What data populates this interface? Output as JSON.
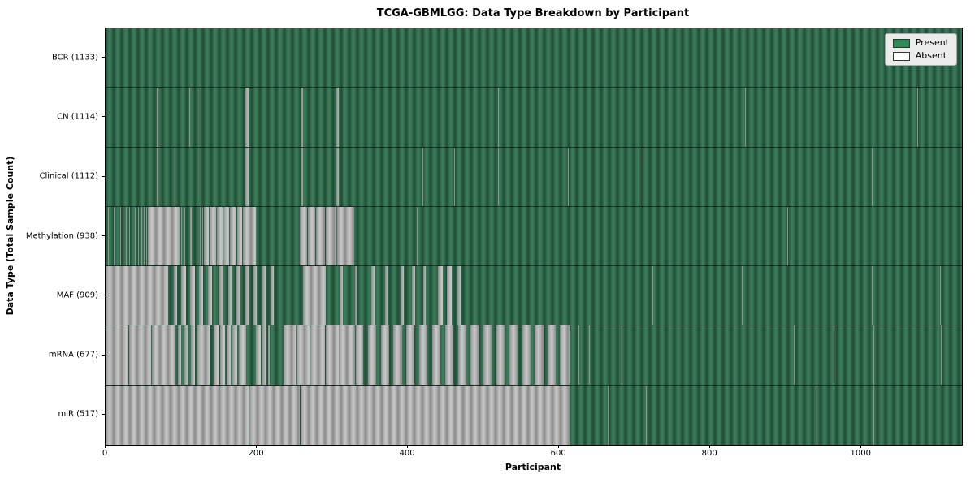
{
  "chart_data": {
    "type": "heatmap",
    "title": "TCGA-GBMLGG: Data Type Breakdown by Participant",
    "xlabel": "Participant",
    "ylabel": "Data Type (Total Sample Count)",
    "x_ticks": [
      0,
      200,
      400,
      600,
      800,
      1000
    ],
    "x_max": 1133,
    "grid": false,
    "legend_position": "upper right",
    "colors": {
      "present_green": "#2e8b57",
      "present_rendered": "#2d6548",
      "absent_white": "#ffffff",
      "absent_rendered": "#a9a9a9",
      "plot_border": "#000000",
      "legend_background": "#ebebeb"
    },
    "legend": [
      {
        "label": "Present",
        "color": "#2e8b57"
      },
      {
        "label": "Absent",
        "color": "#ffffff"
      }
    ],
    "rows": [
      {
        "name": "BCR",
        "label": "BCR (1133)",
        "present_count": 1133,
        "absent_runs": []
      },
      {
        "name": "CN",
        "label": "CN (1114)",
        "present_count": 1114,
        "absent_runs": [
          [
            68,
            70
          ],
          [
            78,
            79
          ],
          [
            111,
            112
          ],
          [
            126,
            127
          ],
          [
            185,
            189
          ],
          [
            259,
            261
          ],
          [
            305,
            309
          ],
          [
            519,
            520
          ],
          [
            846,
            847
          ],
          [
            939,
            940
          ],
          [
            1074,
            1075
          ]
        ]
      },
      {
        "name": "Clinical",
        "label": "Clinical (1112)",
        "present_count": 1112,
        "absent_runs": [
          [
            68,
            70
          ],
          [
            78,
            79
          ],
          [
            91,
            92
          ],
          [
            126,
            127
          ],
          [
            185,
            189
          ],
          [
            259,
            261
          ],
          [
            305,
            309
          ],
          [
            419,
            420
          ],
          [
            461,
            462
          ],
          [
            519,
            520
          ],
          [
            612,
            613
          ],
          [
            711,
            712
          ],
          [
            1014,
            1015
          ]
        ]
      },
      {
        "name": "Methylation",
        "label": "Methylation (938)",
        "present_count": 938,
        "absent_runs": [
          [
            3,
            4
          ],
          [
            7,
            8
          ],
          [
            11,
            12
          ],
          [
            19,
            20
          ],
          [
            23,
            24
          ],
          [
            27,
            28
          ],
          [
            31,
            32
          ],
          [
            35,
            36
          ],
          [
            39,
            40
          ],
          [
            43,
            44
          ],
          [
            47,
            48
          ],
          [
            51,
            52
          ],
          [
            54,
            55
          ],
          [
            56,
            98
          ],
          [
            100,
            101
          ],
          [
            104,
            105
          ],
          [
            107,
            108
          ],
          [
            112,
            114
          ],
          [
            120,
            121
          ],
          [
            125,
            126
          ],
          [
            128,
            129
          ],
          [
            130,
            137
          ],
          [
            138,
            146
          ],
          [
            147,
            155
          ],
          [
            156,
            163
          ],
          [
            165,
            172
          ],
          [
            174,
            181
          ],
          [
            182,
            199
          ],
          [
            257,
            267
          ],
          [
            268,
            277
          ],
          [
            278,
            290
          ],
          [
            291,
            305
          ],
          [
            306,
            329
          ],
          [
            412,
            413
          ],
          [
            838,
            839
          ],
          [
            902,
            903
          ]
        ]
      },
      {
        "name": "MAF",
        "label": "MAF (909)",
        "present_count": 909,
        "absent_runs": [
          [
            0,
            83
          ],
          [
            90,
            95
          ],
          [
            100,
            106
          ],
          [
            112,
            118
          ],
          [
            124,
            129
          ],
          [
            135,
            141
          ],
          [
            150,
            156
          ],
          [
            162,
            167
          ],
          [
            173,
            178
          ],
          [
            185,
            190
          ],
          [
            196,
            200
          ],
          [
            207,
            212
          ],
          [
            218,
            223
          ],
          [
            261,
            291
          ],
          [
            310,
            314
          ],
          [
            330,
            333
          ],
          [
            352,
            356
          ],
          [
            370,
            373
          ],
          [
            390,
            394
          ],
          [
            405,
            410
          ],
          [
            420,
            424
          ],
          [
            440,
            446
          ],
          [
            452,
            458
          ],
          [
            465,
            470
          ],
          [
            723,
            724
          ],
          [
            842,
            843
          ],
          [
            1014,
            1015
          ],
          [
            1104,
            1105
          ]
        ]
      },
      {
        "name": "mRNA",
        "label": "mRNA (677)",
        "present_count": 677,
        "absent_runs": [
          [
            0,
            30
          ],
          [
            31,
            60
          ],
          [
            61,
            92
          ],
          [
            96,
            100
          ],
          [
            104,
            109
          ],
          [
            113,
            118
          ],
          [
            121,
            138
          ],
          [
            143,
            150
          ],
          [
            152,
            158
          ],
          [
            160,
            166
          ],
          [
            168,
            174
          ],
          [
            176,
            186
          ],
          [
            199,
            205
          ],
          [
            207,
            213
          ],
          [
            215,
            217
          ],
          [
            235,
            252
          ],
          [
            253,
            270
          ],
          [
            271,
            290
          ],
          [
            291,
            308
          ],
          [
            309,
            330
          ],
          [
            331,
            341
          ],
          [
            347,
            358
          ],
          [
            364,
            375
          ],
          [
            381,
            392
          ],
          [
            398,
            409
          ],
          [
            415,
            426
          ],
          [
            432,
            443
          ],
          [
            449,
            460
          ],
          [
            466,
            477
          ],
          [
            483,
            494
          ],
          [
            500,
            511
          ],
          [
            517,
            528
          ],
          [
            534,
            545
          ],
          [
            551,
            562
          ],
          [
            568,
            579
          ],
          [
            585,
            596
          ],
          [
            601,
            614
          ],
          [
            626,
            627
          ],
          [
            640,
            641
          ],
          [
            683,
            684
          ],
          [
            911,
            912
          ],
          [
            963,
            964
          ],
          [
            1016,
            1017
          ],
          [
            1105,
            1106
          ]
        ]
      },
      {
        "name": "miR",
        "label": "miR (517)",
        "present_count": 517,
        "absent_runs": [
          [
            0,
            189
          ],
          [
            190,
            257
          ],
          [
            258,
            614
          ],
          [
            664,
            665
          ],
          [
            715,
            716
          ],
          [
            941,
            942
          ],
          [
            1016,
            1017
          ]
        ]
      }
    ]
  }
}
